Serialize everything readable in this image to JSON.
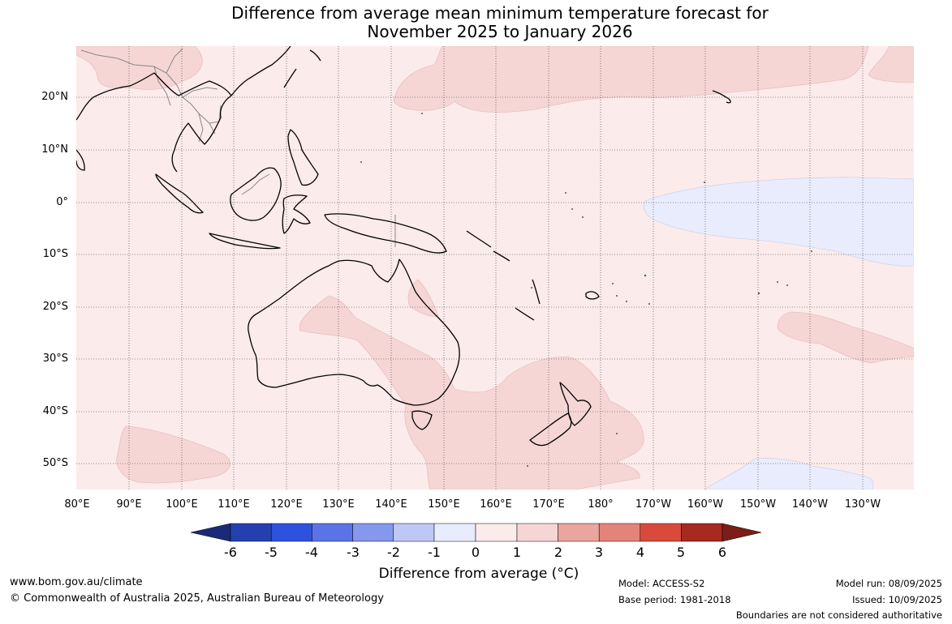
{
  "title": {
    "line1": "Difference from average mean minimum temperature forecast for",
    "line2": "November 2025 to January 2026"
  },
  "latitude_labels": [
    "20°N",
    "10°N",
    "0°",
    "10°S",
    "20°S",
    "30°S",
    "40°S",
    "50°S"
  ],
  "longitude_labels": [
    "80°E",
    "90°E",
    "100°E",
    "110°E",
    "120°E",
    "130°E",
    "140°E",
    "150°E",
    "160°E",
    "170°E",
    "180°",
    "170°W",
    "160°W",
    "150°W",
    "140°W",
    "130°W"
  ],
  "colorbar": {
    "title": "Difference from average (°C)",
    "ticks": [
      "-6",
      "-5",
      "-4",
      "-3",
      "-2",
      "-1",
      "0",
      "1",
      "2",
      "3",
      "4",
      "5",
      "6"
    ],
    "colors": [
      "#1b2a78",
      "#2440b0",
      "#2f52de",
      "#5a74e8",
      "#8598ee",
      "#bfc8f4",
      "#e9ecfc",
      "#fbebea",
      "#f5d6d5",
      "#eaa59f",
      "#e4837a",
      "#d94a3c",
      "#a8291f",
      "#7a1e17"
    ]
  },
  "colors": {
    "background_anomaly": "#fbebea",
    "warm_anomaly": "#f5d6d5",
    "cool_anomaly": "#e9ecfc",
    "coastline": "#000000",
    "border": "#888888",
    "grid": "#333333"
  },
  "footer": {
    "url": "www.bom.gov.au/climate",
    "copyright": "© Commonwealth of Australia 2025, Australian Bureau of Meteorology",
    "model": "Model: ACCESS-S2",
    "base_period": "Base period: 1981-2018",
    "model_run": "Model run: 08/09/2025",
    "issued": "Issued: 10/09/2025",
    "disclaimer": "Boundaries are not considered authoritative"
  }
}
